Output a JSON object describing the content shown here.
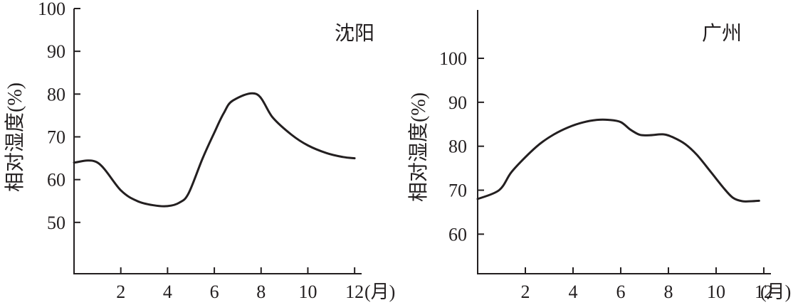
{
  "chart_data": [
    {
      "type": "line",
      "title": "沈阳",
      "xlabel": "(月)",
      "ylabel": "相对湿度(%)",
      "xticks": [
        2,
        4,
        6,
        8,
        10,
        12
      ],
      "yticks": [
        50,
        60,
        70,
        80,
        90,
        100
      ],
      "xlim": [
        0,
        12.3
      ],
      "ylim": [
        38,
        100
      ],
      "grid": false,
      "series": [
        {
          "x": [
            0,
            1,
            2,
            2.7,
            3.4,
            4,
            4.5,
            4.9,
            5.5,
            6,
            6.4,
            6.8,
            7.8,
            8.5,
            9.3,
            10,
            10.8,
            11.5,
            12
          ],
          "y": [
            64,
            64,
            57.5,
            55,
            54,
            53.8,
            54.6,
            56.8,
            65,
            71,
            75.5,
            78.5,
            80,
            74.5,
            70.5,
            68,
            66.2,
            65.3,
            65
          ]
        }
      ]
    },
    {
      "type": "line",
      "title": "广州",
      "xlabel": "(月)",
      "ylabel": "相对湿度(%)",
      "xticks": [
        2,
        4,
        6,
        8,
        10,
        12
      ],
      "yticks": [
        60,
        70,
        80,
        90,
        100
      ],
      "xlim": [
        0,
        12.3
      ],
      "ylim": [
        51,
        111
      ],
      "grid": false,
      "series": [
        {
          "x": [
            0,
            0.9,
            1.4,
            2,
            2.6,
            3.2,
            3.8,
            4.4,
            5,
            5.5,
            6,
            6.4,
            6.8,
            7.2,
            7.8,
            8.2,
            8.7,
            9.2,
            9.8,
            10.3,
            10.7,
            11.1,
            11.5,
            11.8
          ],
          "y": [
            68,
            70,
            74,
            77.5,
            80.5,
            82.7,
            84.3,
            85.4,
            86,
            86,
            85.5,
            83.8,
            82.6,
            82.5,
            82.7,
            82,
            80.5,
            78,
            74,
            70.6,
            68.3,
            67.5,
            67.5,
            67.6
          ]
        }
      ]
    }
  ]
}
